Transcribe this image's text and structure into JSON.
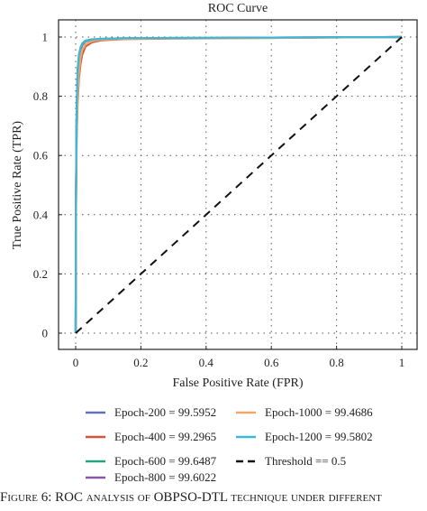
{
  "chart_data": {
    "type": "line",
    "title": "ROC Curve",
    "xlabel": "False Positive Rate (FPR)",
    "ylabel": "True Positive Rate (TPR)",
    "xlim": [
      0,
      1
    ],
    "ylim": [
      0,
      1
    ],
    "xticks": [
      0,
      0.2,
      0.4,
      0.6,
      0.8,
      1
    ],
    "yticks": [
      0,
      0.2,
      0.4,
      0.6,
      0.8,
      1
    ],
    "xtick_labels": [
      "0",
      "0.2",
      "0.4",
      "0.6",
      "0.8",
      "1"
    ],
    "ytick_labels": [
      "0",
      "0.2",
      "0.4",
      "0.6",
      "0.8",
      "1"
    ],
    "grid": true,
    "legend_position": "below",
    "series": [
      {
        "name": "Epoch-200 = 99.5952",
        "color": "#6272b8",
        "x": [
          0,
          0.001,
          0.003,
          0.006,
          0.01,
          0.015,
          0.02,
          0.03,
          0.05,
          0.08,
          0.15,
          0.3,
          0.6,
          1
        ],
        "y": [
          0,
          0.45,
          0.72,
          0.86,
          0.92,
          0.955,
          0.972,
          0.985,
          0.99,
          0.993,
          0.995,
          0.996,
          0.998,
          1
        ]
      },
      {
        "name": "Epoch-400 = 99.2965",
        "color": "#d9533b",
        "x": [
          0,
          0.001,
          0.003,
          0.006,
          0.01,
          0.015,
          0.02,
          0.03,
          0.05,
          0.08,
          0.15,
          0.3,
          0.6,
          1
        ],
        "y": [
          0,
          0.4,
          0.66,
          0.78,
          0.86,
          0.91,
          0.94,
          0.968,
          0.982,
          0.989,
          0.993,
          0.995,
          0.997,
          1
        ]
      },
      {
        "name": "Epoch-600 = 99.6487",
        "color": "#28a27c",
        "x": [
          0,
          0.001,
          0.003,
          0.006,
          0.01,
          0.015,
          0.02,
          0.03,
          0.05,
          0.08,
          0.15,
          0.3,
          0.6,
          1
        ],
        "y": [
          0,
          0.48,
          0.76,
          0.89,
          0.94,
          0.965,
          0.978,
          0.988,
          0.992,
          0.994,
          0.996,
          0.997,
          0.998,
          1
        ]
      },
      {
        "name": "Epoch-800 = 99.6022",
        "color": "#8a55a8",
        "x": [
          0,
          0.001,
          0.003,
          0.006,
          0.01,
          0.015,
          0.02,
          0.03,
          0.05,
          0.08,
          0.15,
          0.3,
          0.6,
          1
        ],
        "y": [
          0,
          0.46,
          0.74,
          0.87,
          0.93,
          0.96,
          0.975,
          0.986,
          0.991,
          0.993,
          0.995,
          0.996,
          0.998,
          1
        ]
      },
      {
        "name": "Epoch-1000 = 99.4686",
        "color": "#f0a868",
        "x": [
          0,
          0.001,
          0.003,
          0.006,
          0.01,
          0.015,
          0.02,
          0.03,
          0.05,
          0.08,
          0.15,
          0.3,
          0.6,
          1
        ],
        "y": [
          0,
          0.42,
          0.68,
          0.8,
          0.88,
          0.93,
          0.955,
          0.975,
          0.986,
          0.991,
          0.994,
          0.996,
          0.997,
          1
        ]
      },
      {
        "name": "Epoch-1200 = 99.5802",
        "color": "#3fb8d8",
        "x": [
          0,
          0.001,
          0.003,
          0.006,
          0.01,
          0.015,
          0.02,
          0.03,
          0.05,
          0.08,
          0.15,
          0.3,
          0.6,
          1
        ],
        "y": [
          0,
          0.47,
          0.75,
          0.88,
          0.935,
          0.962,
          0.976,
          0.987,
          0.991,
          0.994,
          0.996,
          0.997,
          0.998,
          1
        ]
      },
      {
        "name": "Threshold == 0.5",
        "color": "#111111",
        "dashed": true,
        "x": [
          0,
          1
        ],
        "y": [
          0,
          1
        ]
      }
    ],
    "legend_order": [
      0,
      4,
      1,
      5,
      2,
      6,
      3
    ]
  },
  "caption": "Figure 6: ROC analysis of OBPSO-DTL technique under different"
}
